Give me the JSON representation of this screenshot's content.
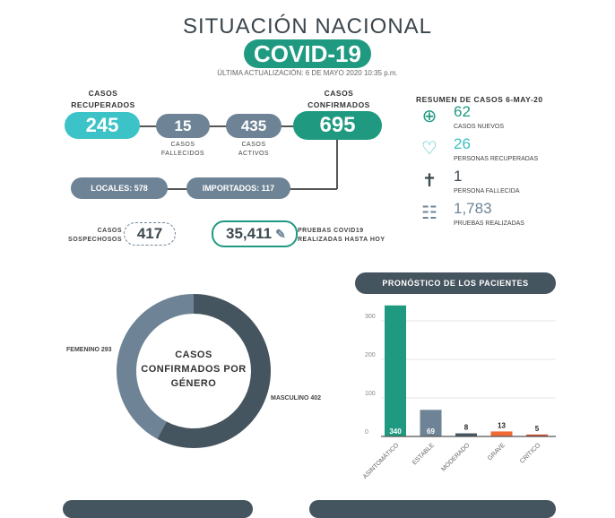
{
  "header": {
    "title": "SITUACIÓN NACIONAL",
    "badge": "COVID-19",
    "updated": "ÚLTIMA ACTUALIZACIÓN: 6 DE MAYO 2020 10:35 p.m."
  },
  "flow": {
    "recuperados": {
      "label1": "CASOS",
      "label2": "RECUPERADOS",
      "value": "245"
    },
    "fallecidos": {
      "value": "15",
      "label1": "CASOS",
      "label2": "FALLECIDOS"
    },
    "activos": {
      "value": "435",
      "label1": "CASOS",
      "label2": "ACTIVOS"
    },
    "confirmados": {
      "label1": "CASOS",
      "label2": "CONFIRMADOS",
      "value": "695"
    },
    "locales": "LOCALES: 578",
    "importados": "IMPORTADOS: 117",
    "sospechosos": {
      "label1": "CASOS",
      "label2": "SOSPECHOSOS",
      "value": "417"
    },
    "pruebas": {
      "value": "35,411",
      "label1": "PRUEBAS COVID19",
      "label2": "REALIZADAS HASTA HOY"
    }
  },
  "summary": {
    "title": "RESUMEN DE CASOS 6-MAY-20",
    "items": [
      {
        "icon": "plus-circle-icon",
        "value": "62",
        "label": "CASOS NUEVOS",
        "color": "#1f9a80"
      },
      {
        "icon": "heart-icon",
        "value": "26",
        "label": "PERSONAS RECUPERADAS",
        "color": "#3cbfc0"
      },
      {
        "icon": "tombstone-icon",
        "value": "1",
        "label": "PERSONA FALLECIDA",
        "color": "#3d4a52"
      },
      {
        "icon": "clipboard-icon",
        "value": "1,783",
        "label": "PRUEBAS REALIZADAS",
        "color": "#6e8496"
      }
    ]
  },
  "chart_data": [
    {
      "type": "pie",
      "title": "CASOS CONFIRMADOS POR GÉNERO",
      "categories": [
        "FEMENINO",
        "MASCULINO"
      ],
      "values": [
        293,
        402
      ],
      "labels": [
        "FEMENINO 293",
        "MASCULINO 402"
      ],
      "colors": [
        "#6e8496",
        "#45555f"
      ]
    },
    {
      "type": "bar",
      "title": "PRONÓSTICO DE LOS PACIENTES",
      "categories": [
        "ASINTOMÁTICO",
        "ESTABLE",
        "MODERADO",
        "GRAVE",
        "CRÍTICO"
      ],
      "values": [
        340,
        69,
        8,
        13,
        5
      ],
      "colors": [
        "#1f9a80",
        "#6e8496",
        "#45555f",
        "#f06a35",
        "#c9502e"
      ],
      "yticks": [
        0,
        100,
        200,
        300
      ],
      "ylim": [
        0,
        340
      ]
    }
  ]
}
